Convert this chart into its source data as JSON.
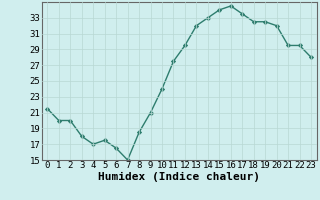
{
  "x": [
    0,
    1,
    2,
    3,
    4,
    5,
    6,
    7,
    8,
    9,
    10,
    11,
    12,
    13,
    14,
    15,
    16,
    17,
    18,
    19,
    20,
    21,
    22,
    23
  ],
  "y": [
    21.5,
    20.0,
    20.0,
    18.0,
    17.0,
    17.5,
    16.5,
    15.0,
    18.5,
    21.0,
    24.0,
    27.5,
    29.5,
    32.0,
    33.0,
    34.0,
    34.5,
    33.5,
    32.5,
    32.5,
    32.0,
    29.5,
    29.5,
    28.0
  ],
  "xlabel": "Humidex (Indice chaleur)",
  "ylim": [
    15,
    35
  ],
  "yticks": [
    15,
    17,
    19,
    21,
    23,
    25,
    27,
    29,
    31,
    33
  ],
  "xticks": [
    0,
    1,
    2,
    3,
    4,
    5,
    6,
    7,
    8,
    9,
    10,
    11,
    12,
    13,
    14,
    15,
    16,
    17,
    18,
    19,
    20,
    21,
    22,
    23
  ],
  "line_color": "#2e7d6e",
  "marker_color": "#2e7d6e",
  "bg_color": "#d0eeee",
  "grid_color": "#b8d8d4",
  "tick_label_fontsize": 6.5,
  "xlabel_fontsize": 8
}
